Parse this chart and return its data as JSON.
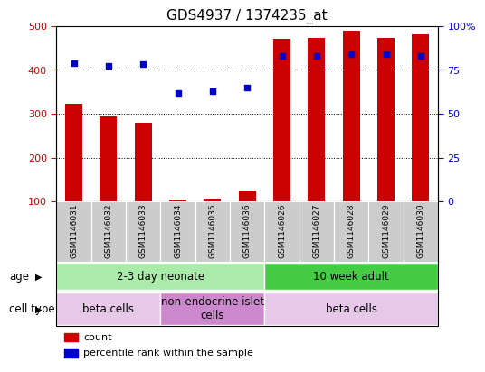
{
  "title": "GDS4937 / 1374235_at",
  "samples": [
    "GSM1146031",
    "GSM1146032",
    "GSM1146033",
    "GSM1146034",
    "GSM1146035",
    "GSM1146036",
    "GSM1146026",
    "GSM1146027",
    "GSM1146028",
    "GSM1146029",
    "GSM1146030"
  ],
  "counts": [
    322,
    294,
    280,
    105,
    107,
    125,
    470,
    472,
    490,
    472,
    480
  ],
  "percentile_ranks": [
    79,
    77,
    78,
    62,
    63,
    65,
    83,
    83,
    84,
    84,
    83
  ],
  "ylim_left": [
    100,
    500
  ],
  "ylim_right": [
    0,
    100
  ],
  "yticks_left": [
    100,
    200,
    300,
    400,
    500
  ],
  "yticks_right": [
    0,
    25,
    50,
    75,
    100
  ],
  "ytick_labels_right": [
    "0",
    "25",
    "50",
    "75",
    "100%"
  ],
  "bar_color": "#cc0000",
  "dot_color": "#0000cc",
  "bar_width": 0.5,
  "age_groups": [
    {
      "label": "2-3 day neonate",
      "start": 0,
      "end": 6,
      "color": "#aaeaaa"
    },
    {
      "label": "10 week adult",
      "start": 6,
      "end": 11,
      "color": "#44cc44"
    }
  ],
  "cell_type_groups": [
    {
      "label": "beta cells",
      "start": 0,
      "end": 3,
      "color": "#e8c8e8"
    },
    {
      "label": "non-endocrine islet\ncells",
      "start": 3,
      "end": 6,
      "color": "#cc88cc"
    },
    {
      "label": "beta cells",
      "start": 6,
      "end": 11,
      "color": "#e8c8e8"
    }
  ],
  "xtick_bg_color": "#cccccc",
  "age_row_label": "age",
  "cell_type_row_label": "cell type",
  "legend_count_label": "count",
  "legend_percentile_label": "percentile rank within the sample",
  "title_fontsize": 11,
  "tick_fontsize": 8,
  "sample_fontsize": 6.5,
  "annot_fontsize": 8.5,
  "legend_fontsize": 8
}
